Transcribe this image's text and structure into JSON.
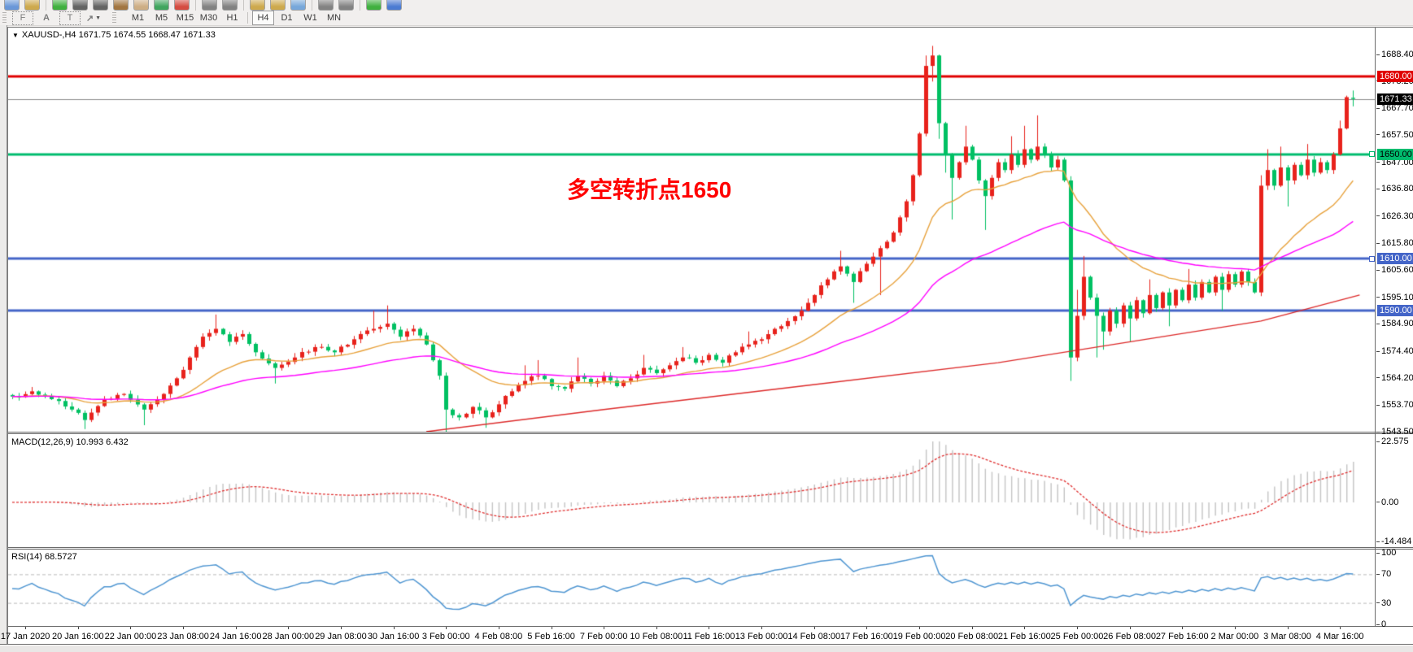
{
  "toolbar": {
    "row1_icons": [
      {
        "name": "new-chart-icon",
        "c": "#5b8ed6"
      },
      {
        "name": "zoom-icon",
        "c": "#caa23c"
      },
      {
        "sep": true
      },
      {
        "name": "new-order-icon",
        "c": "#2daa2d"
      },
      {
        "name": "market-watch-icon",
        "c": "#555555"
      },
      {
        "name": "data-window-icon",
        "c": "#555555"
      },
      {
        "name": "ink-icon",
        "c": "#9a6a2f"
      },
      {
        "name": "mail-icon",
        "c": "#caa77a"
      },
      {
        "name": "web-icon",
        "c": "#2d9e4f"
      },
      {
        "name": "alert-icon",
        "c": "#d23b2f"
      },
      {
        "sep": true
      },
      {
        "name": "cursor-icon",
        "c": "#777777"
      },
      {
        "name": "crosshair-icon",
        "c": "#777777"
      },
      {
        "sep": true
      },
      {
        "name": "zoom-in-icon",
        "c": "#caa23c"
      },
      {
        "name": "zoom-out-icon",
        "c": "#caa23c"
      },
      {
        "name": "tile-windows-icon",
        "c": "#6aa0d8"
      },
      {
        "sep": true
      },
      {
        "name": "hline-tool-icon",
        "c": "#777777"
      },
      {
        "name": "vline-tool-icon",
        "c": "#777777"
      },
      {
        "sep": true
      },
      {
        "name": "add-indicator-icon",
        "c": "#2daa2d"
      },
      {
        "name": "refresh-icon",
        "c": "#3a6fd0"
      }
    ],
    "row2_icons": [
      {
        "name": "fibo-grid-icon",
        "glyph": "F",
        "boxed": true
      },
      {
        "name": "text-label-icon",
        "glyph": "A",
        "boxed": false
      },
      {
        "name": "text-box-icon",
        "glyph": "T",
        "boxed": true
      },
      {
        "name": "draw-arrows-icon",
        "glyph": "↗",
        "boxed": false,
        "caret": "▼"
      }
    ],
    "timeframes": [
      {
        "label": "M1",
        "active": false
      },
      {
        "label": "M5",
        "active": false
      },
      {
        "label": "M15",
        "active": false
      },
      {
        "label": "M30",
        "active": false
      },
      {
        "label": "H1",
        "active": false
      },
      {
        "label": "H4",
        "active": true
      },
      {
        "label": "D1",
        "active": false
      },
      {
        "label": "W1",
        "active": false
      },
      {
        "label": "MN",
        "active": false
      }
    ]
  },
  "chart": {
    "symbol_triangle": "▼",
    "header_text": "XAUUSD-,H4  1671.75 1674.55 1668.47 1671.33",
    "annotation": {
      "text": "多空转折点1650",
      "color": "#ff0000"
    }
  },
  "macd": {
    "label": "MACD(12,26,9) 10.993 6.432"
  },
  "rsi": {
    "label": "RSI(14) 68.5727"
  },
  "chart_data": {
    "type": "candlestick",
    "symbol": "XAUUSD-",
    "timeframe": "H4",
    "title": "XAUUSD-,H4",
    "last_ohlc": {
      "open": 1671.75,
      "high": 1674.55,
      "low": 1668.47,
      "close": 1671.33
    },
    "bars": 205,
    "seed": 97,
    "price_axis": {
      "max": 1688.4,
      "min": 1543.5,
      "ticks": [
        1688.4,
        1678.2,
        1667.7,
        1657.5,
        1647.0,
        1636.8,
        1626.3,
        1615.8,
        1605.6,
        1595.1,
        1584.9,
        1574.4,
        1564.2,
        1553.7,
        1543.5
      ]
    },
    "hlines": [
      {
        "price": 1680.0,
        "label": "1680.00",
        "color": "#e00000",
        "text_color": "#ffffff",
        "width": 3,
        "handle": false
      },
      {
        "price": 1650.0,
        "label": "1650.00",
        "color": "#00bc6e",
        "text_color": "#000000",
        "width": 3,
        "handle": true
      },
      {
        "price": 1610.0,
        "label": "1610.00",
        "color": "#4465c8",
        "text_color": "#ffffff",
        "width": 3,
        "handle": true
      },
      {
        "price": 1590.0,
        "label": "1590.00",
        "color": "#4465c8",
        "text_color": "#ffffff",
        "width": 3,
        "handle": false
      }
    ],
    "current_price": {
      "value": 1671.33,
      "label": "1671.33",
      "line_color": "#8a8a8a",
      "badge_color": "#000000",
      "text_color": "#ffffff"
    },
    "time_labels": [
      "17 Jan 2020",
      "20 Jan 16:00",
      "22 Jan 00:00",
      "23 Jan 08:00",
      "24 Jan 16:00",
      "28 Jan 00:00",
      "29 Jan 08:00",
      "30 Jan 16:00",
      "3 Feb 00:00",
      "4 Feb 08:00",
      "5 Feb 16:00",
      "7 Feb 00:00",
      "10 Feb 08:00",
      "11 Feb 16:00",
      "13 Feb 00:00",
      "14 Feb 08:00",
      "17 Feb 16:00",
      "19 Feb 00:00",
      "20 Feb 08:00",
      "21 Feb 16:00",
      "25 Feb 00:00",
      "26 Feb 08:00",
      "27 Feb 16:00",
      "2 Mar 00:00",
      "3 Mar 08:00",
      "4 Mar 16:00"
    ],
    "close_waypoints": [
      [
        0,
        1557,
        null,
        null
      ],
      [
        3,
        1559,
        null,
        null
      ],
      [
        6,
        1556,
        null,
        null
      ],
      [
        9,
        1552,
        null,
        null
      ],
      [
        11,
        1548,
        null,
        1544.5
      ],
      [
        14,
        1556,
        null,
        null
      ],
      [
        17,
        1558,
        null,
        null
      ],
      [
        20,
        1552,
        null,
        1546
      ],
      [
        23,
        1558,
        null,
        null
      ],
      [
        25,
        1564,
        null,
        null
      ],
      [
        27,
        1572,
        null,
        null
      ],
      [
        29,
        1580,
        null,
        null
      ],
      [
        31,
        1583,
        1588.5,
        null
      ],
      [
        33,
        1578,
        null,
        null
      ],
      [
        35,
        1581,
        null,
        null
      ],
      [
        37,
        1574,
        null,
        null
      ],
      [
        40,
        1568,
        null,
        1562
      ],
      [
        43,
        1572,
        null,
        null
      ],
      [
        46,
        1576,
        null,
        null
      ],
      [
        49,
        1574,
        null,
        null
      ],
      [
        52,
        1579,
        null,
        null
      ],
      [
        55,
        1583,
        1590,
        null
      ],
      [
        57,
        1585,
        1592,
        null
      ],
      [
        59,
        1580,
        null,
        null
      ],
      [
        61,
        1583,
        null,
        null
      ],
      [
        63,
        1577,
        null,
        null
      ],
      [
        65,
        1565,
        null,
        null
      ],
      [
        66,
        1552,
        null,
        1543.5
      ],
      [
        68,
        1549,
        null,
        null
      ],
      [
        70,
        1553,
        null,
        null
      ],
      [
        72,
        1549,
        null,
        1545
      ],
      [
        74,
        1554,
        null,
        null
      ],
      [
        76,
        1559,
        null,
        null
      ],
      [
        78,
        1563,
        1569,
        null
      ],
      [
        80,
        1565,
        1571,
        null
      ],
      [
        82,
        1561,
        null,
        null
      ],
      [
        84,
        1560,
        null,
        null
      ],
      [
        86,
        1565,
        1572,
        null
      ],
      [
        88,
        1562,
        null,
        null
      ],
      [
        90,
        1565,
        null,
        null
      ],
      [
        92,
        1561,
        null,
        null
      ],
      [
        94,
        1564,
        null,
        null
      ],
      [
        96,
        1568,
        1573,
        null
      ],
      [
        98,
        1566,
        null,
        null
      ],
      [
        100,
        1569,
        null,
        null
      ],
      [
        102,
        1572,
        1576,
        null
      ],
      [
        104,
        1570,
        null,
        null
      ],
      [
        106,
        1573,
        null,
        null
      ],
      [
        108,
        1570,
        null,
        null
      ],
      [
        110,
        1574,
        null,
        null
      ],
      [
        112,
        1577,
        1582,
        null
      ],
      [
        114,
        1579,
        null,
        null
      ],
      [
        116,
        1583,
        null,
        null
      ],
      [
        118,
        1586,
        null,
        null
      ],
      [
        120,
        1590,
        null,
        null
      ],
      [
        122,
        1596,
        null,
        null
      ],
      [
        124,
        1602,
        null,
        null
      ],
      [
        126,
        1607,
        1613,
        null
      ],
      [
        128,
        1601,
        null,
        1593
      ],
      [
        130,
        1608,
        null,
        null
      ],
      [
        132,
        1614,
        null,
        1596
      ],
      [
        134,
        1620,
        null,
        null
      ],
      [
        136,
        1632,
        null,
        null
      ],
      [
        137,
        1642,
        null,
        null
      ],
      [
        138,
        1658,
        null,
        null
      ],
      [
        139,
        1684,
        1688,
        null
      ],
      [
        140,
        1688,
        1691.7,
        1678
      ],
      [
        141,
        1662,
        null,
        1656
      ],
      [
        142,
        1650,
        null,
        1643
      ],
      [
        143,
        1641,
        null,
        1625
      ],
      [
        144,
        1647,
        null,
        null
      ],
      [
        145,
        1653,
        1661,
        null
      ],
      [
        146,
        1648,
        null,
        null
      ],
      [
        147,
        1640,
        null,
        null
      ],
      [
        148,
        1634,
        null,
        1621
      ],
      [
        149,
        1641,
        null,
        null
      ],
      [
        150,
        1647,
        null,
        null
      ],
      [
        151,
        1644,
        null,
        null
      ],
      [
        152,
        1650,
        1657,
        null
      ],
      [
        153,
        1646,
        null,
        null
      ],
      [
        154,
        1652,
        1661,
        null
      ],
      [
        155,
        1648,
        null,
        null
      ],
      [
        156,
        1653,
        1665,
        null
      ],
      [
        157,
        1650,
        null,
        null
      ],
      [
        158,
        1645,
        null,
        null
      ],
      [
        159,
        1648,
        null,
        null
      ],
      [
        160,
        1640,
        null,
        null
      ],
      [
        161,
        1572,
        null,
        1563
      ],
      [
        162,
        1588,
        1598,
        null
      ],
      [
        163,
        1603,
        1611,
        null
      ],
      [
        164,
        1595,
        null,
        null
      ],
      [
        165,
        1588,
        null,
        1572
      ],
      [
        166,
        1582,
        null,
        1575
      ],
      [
        167,
        1590,
        null,
        null
      ],
      [
        168,
        1585,
        null,
        null
      ],
      [
        169,
        1592,
        null,
        null
      ],
      [
        170,
        1587,
        null,
        1578
      ],
      [
        171,
        1594,
        null,
        null
      ],
      [
        172,
        1589,
        null,
        null
      ],
      [
        173,
        1596,
        1602,
        null
      ],
      [
        174,
        1591,
        null,
        null
      ],
      [
        175,
        1597,
        null,
        null
      ],
      [
        176,
        1592,
        null,
        1584
      ],
      [
        177,
        1598,
        null,
        null
      ],
      [
        178,
        1594,
        null,
        null
      ],
      [
        179,
        1600,
        1606,
        null
      ],
      [
        180,
        1595,
        null,
        null
      ],
      [
        181,
        1601,
        null,
        null
      ],
      [
        182,
        1597,
        null,
        null
      ],
      [
        183,
        1603,
        null,
        null
      ],
      [
        184,
        1598,
        null,
        1590
      ],
      [
        185,
        1604,
        null,
        null
      ],
      [
        186,
        1600,
        null,
        null
      ],
      [
        187,
        1605,
        null,
        null
      ],
      [
        188,
        1601,
        null,
        null
      ],
      [
        189,
        1597,
        null,
        null
      ],
      [
        190,
        1638,
        1642,
        null
      ],
      [
        191,
        1644,
        1652,
        null
      ],
      [
        192,
        1638,
        null,
        null
      ],
      [
        193,
        1645,
        1653,
        null
      ],
      [
        194,
        1640,
        null,
        1630
      ],
      [
        195,
        1646,
        null,
        null
      ],
      [
        196,
        1642,
        null,
        null
      ],
      [
        197,
        1648,
        1654,
        null
      ],
      [
        198,
        1643,
        null,
        null
      ],
      [
        199,
        1647,
        null,
        null
      ],
      [
        200,
        1644,
        null,
        null
      ],
      [
        201,
        1650,
        null,
        null
      ],
      [
        202,
        1660,
        1663,
        null
      ],
      [
        203,
        1672,
        null,
        null
      ],
      [
        204,
        1671.33,
        1674.55,
        1668.47
      ]
    ],
    "trend_line": [
      [
        63,
        1543.5
      ],
      [
        90,
        1552
      ],
      [
        120,
        1561
      ],
      [
        150,
        1570
      ],
      [
        175,
        1580
      ],
      [
        190,
        1586
      ],
      [
        205,
        1596
      ]
    ],
    "ma_periods": {
      "fast": 21,
      "mid": 55
    },
    "colors": {
      "up": "#e8221c",
      "down": "#00c062",
      "ma_fast": "#e8a23c",
      "ma_mid": "#ff00ff",
      "trend": "#dd2a2a",
      "macd_hist": "#c4c4c4",
      "macd_signal": "#e03030",
      "rsi": "#4f96d2",
      "level_dash": "#bbbbbb"
    },
    "macd_axis": {
      "ticks": [
        {
          "v": 22.575,
          "t": "22.575"
        },
        {
          "v": 0,
          "t": "0.00"
        },
        {
          "v": -14.484,
          "t": "-14.484"
        }
      ],
      "max": 22.575,
      "min": -14.484,
      "value": 10.993,
      "signal": 6.432
    },
    "rsi_axis": {
      "ticks": [
        {
          "v": 100,
          "t": "100"
        },
        {
          "v": 70,
          "t": "70"
        },
        {
          "v": 30,
          "t": "30"
        },
        {
          "v": 0,
          "t": "0"
        }
      ],
      "levels": [
        70,
        30
      ],
      "period": 14,
      "value": 68.5727
    }
  }
}
